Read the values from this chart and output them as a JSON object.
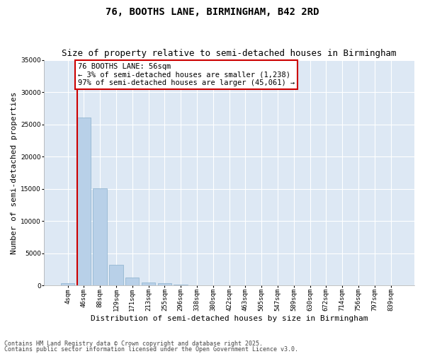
{
  "title_line1": "76, BOOTHS LANE, BIRMINGHAM, B42 2RD",
  "title_line2": "Size of property relative to semi-detached houses in Birmingham",
  "xlabel": "Distribution of semi-detached houses by size in Birmingham",
  "ylabel": "Number of semi-detached properties",
  "categories": [
    "4sqm",
    "46sqm",
    "88sqm",
    "129sqm",
    "171sqm",
    "213sqm",
    "255sqm",
    "296sqm",
    "338sqm",
    "380sqm",
    "422sqm",
    "463sqm",
    "505sqm",
    "547sqm",
    "589sqm",
    "630sqm",
    "672sqm",
    "714sqm",
    "756sqm",
    "797sqm",
    "839sqm"
  ],
  "values": [
    300,
    26100,
    15050,
    3200,
    1200,
    480,
    290,
    60,
    0,
    0,
    0,
    0,
    0,
    0,
    0,
    0,
    0,
    0,
    0,
    0,
    0
  ],
  "bar_color": "#b8d0e8",
  "bar_edgecolor": "#8ab0cc",
  "annotation_title": "76 BOOTHS LANE: 56sqm",
  "annotation_line1": "← 3% of semi-detached houses are smaller (1,238)",
  "annotation_line2": "97% of semi-detached houses are larger (45,061) →",
  "annotation_box_color": "#ffffff",
  "annotation_box_edgecolor": "#cc0000",
  "vline_color": "#cc0000",
  "ylim": [
    0,
    35000
  ],
  "yticks": [
    0,
    5000,
    10000,
    15000,
    20000,
    25000,
    30000,
    35000
  ],
  "background_color": "#dde8f4",
  "grid_color": "#ffffff",
  "footer_line1": "Contains HM Land Registry data © Crown copyright and database right 2025.",
  "footer_line2": "Contains public sector information licensed under the Open Government Licence v3.0.",
  "title_fontsize": 10,
  "subtitle_fontsize": 9,
  "axis_label_fontsize": 8,
  "tick_fontsize": 6.5,
  "annotation_fontsize": 7.5,
  "footer_fontsize": 6
}
